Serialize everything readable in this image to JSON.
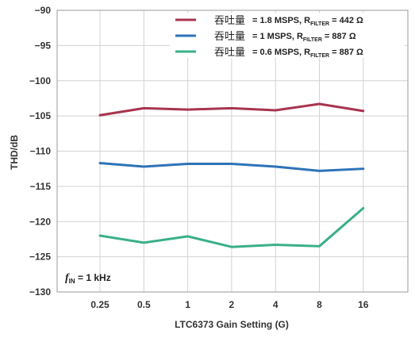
{
  "chart_data": {
    "type": "line",
    "categories": [
      "0.25",
      "0.5",
      "1",
      "2",
      "4",
      "8",
      "16"
    ],
    "xlabel": "LTC6373 Gain Setting (G)",
    "ylabel": "THD/dB",
    "ylim": [
      -130,
      -90
    ],
    "yticks": [
      "-90",
      "-95",
      "-100",
      "-105",
      "-110",
      "-115",
      "-120",
      "-125",
      "-130"
    ],
    "grid": true,
    "legend_position": "top-right",
    "annotation": {
      "f": "f",
      "sub": "IN",
      "rest": " = 1 kHz"
    },
    "series": [
      {
        "prefix": "吞吐量",
        "label_main": " = 1.8 MSPS, R",
        "label_sub": "FILTER",
        "label_tail": " = 442 Ω",
        "color": "#a8344f",
        "values": [
          -104.9,
          -103.9,
          -104.1,
          -103.9,
          -104.2,
          -103.3,
          -104.3
        ]
      },
      {
        "prefix": "吞吐量",
        "label_main": " = 1 MSPS, R",
        "label_sub": "FILTER",
        "label_tail": " = 887 Ω",
        "color": "#2d73b8",
        "values": [
          -111.7,
          -112.2,
          -111.8,
          -111.8,
          -112.2,
          -112.8,
          -112.5
        ]
      },
      {
        "prefix": "吞吐量",
        "label_main": " = 0.6 MSPS, R",
        "label_sub": "FILTER",
        "label_tail": " = 887 Ω",
        "color": "#3aaf8a",
        "values": [
          -122.0,
          -123.0,
          -122.1,
          -123.6,
          -123.3,
          -123.5,
          -118.1
        ]
      }
    ]
  }
}
